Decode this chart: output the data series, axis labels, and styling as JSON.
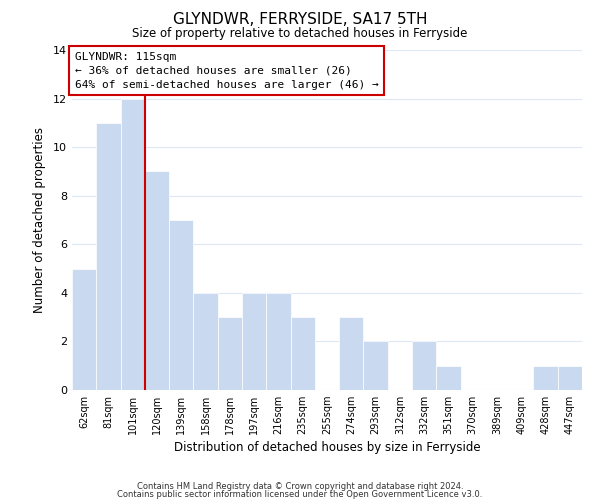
{
  "title": "GLYNDWR, FERRYSIDE, SA17 5TH",
  "subtitle": "Size of property relative to detached houses in Ferryside",
  "xlabel": "Distribution of detached houses by size in Ferryside",
  "ylabel": "Number of detached properties",
  "bar_labels": [
    "62sqm",
    "81sqm",
    "101sqm",
    "120sqm",
    "139sqm",
    "158sqm",
    "178sqm",
    "197sqm",
    "216sqm",
    "235sqm",
    "255sqm",
    "274sqm",
    "293sqm",
    "312sqm",
    "332sqm",
    "351sqm",
    "370sqm",
    "389sqm",
    "409sqm",
    "428sqm",
    "447sqm"
  ],
  "bar_values": [
    5,
    11,
    12,
    9,
    7,
    4,
    3,
    4,
    4,
    3,
    0,
    3,
    2,
    0,
    2,
    1,
    0,
    0,
    0,
    1,
    1
  ],
  "bar_color": "#c8d9f0",
  "bar_edge_color": "#ffffff",
  "property_line_x": 2.5,
  "annotation_title": "GLYNDWR: 115sqm",
  "annotation_line1": "← 36% of detached houses are smaller (26)",
  "annotation_line2": "64% of semi-detached houses are larger (46) →",
  "annotation_box_color": "#ffffff",
  "annotation_box_edge_color": "#cc0000",
  "property_line_color": "#cc0000",
  "ylim": [
    0,
    14
  ],
  "yticks": [
    0,
    2,
    4,
    6,
    8,
    10,
    12,
    14
  ],
  "footer1": "Contains HM Land Registry data © Crown copyright and database right 2024.",
  "footer2": "Contains public sector information licensed under the Open Government Licence v3.0.",
  "background_color": "#ffffff",
  "grid_color": "#dce8f5"
}
